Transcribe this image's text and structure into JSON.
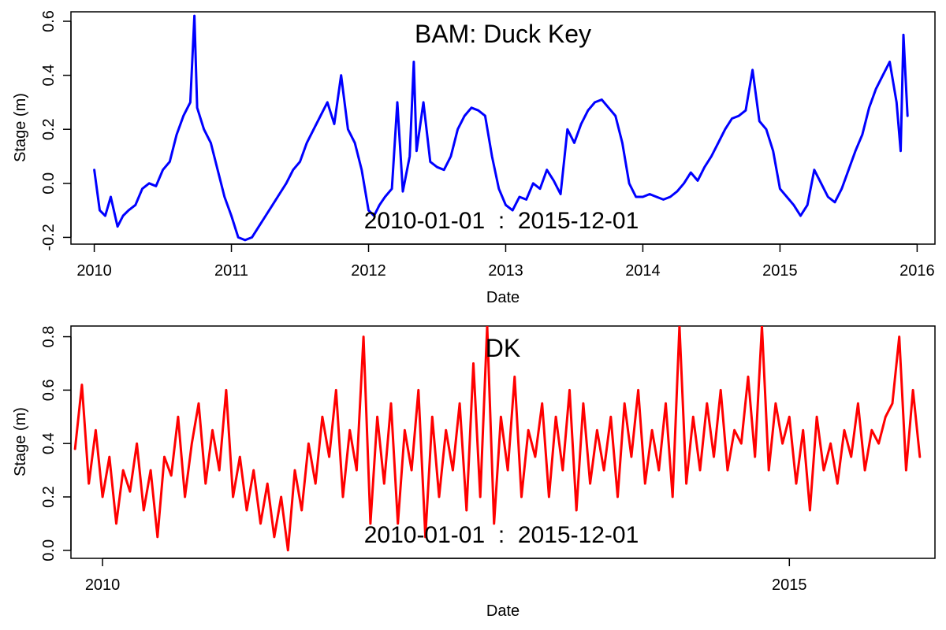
{
  "chart_data": [
    {
      "type": "line",
      "title": "BAM: Duck Key",
      "annotation": "2010-01-01  :  2015-12-01",
      "xlabel": "Date",
      "ylabel": "Stage (m)",
      "xlim": [
        2009.83,
        2016.13
      ],
      "ylim": [
        -0.225,
        0.635
      ],
      "x_ticks": [
        "2010",
        "2011",
        "2012",
        "2013",
        "2014",
        "2015",
        "2016"
      ],
      "x_tick_values": [
        2010,
        2011,
        2012,
        2013,
        2014,
        2015,
        2016
      ],
      "y_ticks": [
        "-0.2",
        "0.0",
        "0.2",
        "0.4",
        "0.6"
      ],
      "y_tick_values": [
        -0.2,
        0.0,
        0.2,
        0.4,
        0.6
      ],
      "series": [
        {
          "color": "#0000ff",
          "x": [
            2010.0,
            2010.04,
            2010.08,
            2010.12,
            2010.17,
            2010.21,
            2010.25,
            2010.3,
            2010.35,
            2010.4,
            2010.45,
            2010.5,
            2010.55,
            2010.6,
            2010.65,
            2010.7,
            2010.73,
            2010.75,
            2010.8,
            2010.85,
            2010.9,
            2010.95,
            2011.0,
            2011.05,
            2011.1,
            2011.15,
            2011.2,
            2011.25,
            2011.3,
            2011.35,
            2011.4,
            2011.45,
            2011.5,
            2011.55,
            2011.6,
            2011.65,
            2011.7,
            2011.75,
            2011.8,
            2011.85,
            2011.9,
            2011.95,
            2012.0,
            2012.04,
            2012.08,
            2012.12,
            2012.17,
            2012.21,
            2012.25,
            2012.3,
            2012.33,
            2012.35,
            2012.4,
            2012.45,
            2012.5,
            2012.55,
            2012.6,
            2012.65,
            2012.7,
            2012.75,
            2012.8,
            2012.85,
            2012.9,
            2012.95,
            2013.0,
            2013.05,
            2013.1,
            2013.15,
            2013.2,
            2013.25,
            2013.3,
            2013.35,
            2013.4,
            2013.45,
            2013.5,
            2013.55,
            2013.6,
            2013.65,
            2013.7,
            2013.75,
            2013.8,
            2013.85,
            2013.9,
            2013.95,
            2014.0,
            2014.05,
            2014.1,
            2014.15,
            2014.2,
            2014.25,
            2014.3,
            2014.35,
            2014.4,
            2014.45,
            2014.5,
            2014.55,
            2014.6,
            2014.65,
            2014.7,
            2014.75,
            2014.8,
            2014.85,
            2014.9,
            2014.95,
            2015.0,
            2015.05,
            2015.1,
            2015.15,
            2015.2,
            2015.25,
            2015.3,
            2015.35,
            2015.4,
            2015.45,
            2015.5,
            2015.55,
            2015.6,
            2015.65,
            2015.7,
            2015.75,
            2015.8,
            2015.85,
            2015.88,
            2015.9,
            2015.93
          ],
          "y": [
            0.05,
            -0.1,
            -0.12,
            -0.05,
            -0.16,
            -0.12,
            -0.1,
            -0.08,
            -0.02,
            0.0,
            -0.01,
            0.05,
            0.08,
            0.18,
            0.25,
            0.3,
            0.62,
            0.28,
            0.2,
            0.15,
            0.05,
            -0.05,
            -0.12,
            -0.2,
            -0.21,
            -0.2,
            -0.16,
            -0.12,
            -0.08,
            -0.04,
            0.0,
            0.05,
            0.08,
            0.15,
            0.2,
            0.25,
            0.3,
            0.22,
            0.4,
            0.2,
            0.15,
            0.05,
            -0.1,
            -0.12,
            -0.08,
            -0.05,
            -0.02,
            0.3,
            -0.03,
            0.1,
            0.45,
            0.12,
            0.3,
            0.08,
            0.06,
            0.05,
            0.1,
            0.2,
            0.25,
            0.28,
            0.27,
            0.25,
            0.1,
            -0.02,
            -0.08,
            -0.1,
            -0.05,
            -0.06,
            0.0,
            -0.02,
            0.05,
            0.01,
            -0.04,
            0.2,
            0.15,
            0.22,
            0.27,
            0.3,
            0.31,
            0.28,
            0.25,
            0.15,
            0.0,
            -0.05,
            -0.05,
            -0.04,
            -0.05,
            -0.06,
            -0.05,
            -0.03,
            0.0,
            0.04,
            0.01,
            0.06,
            0.1,
            0.15,
            0.2,
            0.24,
            0.25,
            0.27,
            0.42,
            0.23,
            0.2,
            0.12,
            -0.02,
            -0.05,
            -0.08,
            -0.12,
            -0.08,
            0.05,
            0.0,
            -0.05,
            -0.07,
            -0.02,
            0.05,
            0.12,
            0.18,
            0.28,
            0.35,
            0.4,
            0.45,
            0.3,
            0.12,
            0.55,
            0.25
          ]
        }
      ]
    },
    {
      "type": "line",
      "title": "DK",
      "annotation": "2010-01-01  :  2015-12-01",
      "xlabel": "Date",
      "ylabel": "Stage (m)",
      "xlim": [
        2009.77,
        2016.06
      ],
      "ylim": [
        -0.03,
        0.84
      ],
      "x_ticks": [
        "2010",
        "2015"
      ],
      "x_tick_values": [
        2010,
        2015
      ],
      "y_ticks": [
        "0.0",
        "0.2",
        "0.4",
        "0.6",
        "0.8"
      ],
      "y_tick_values": [
        0.0,
        0.2,
        0.4,
        0.6,
        0.8
      ],
      "series": [
        {
          "color": "#ff0000",
          "x": [
            2009.8,
            2009.85,
            2009.9,
            2009.95,
            2010.0,
            2010.05,
            2010.1,
            2010.15,
            2010.2,
            2010.25,
            2010.3,
            2010.35,
            2010.4,
            2010.45,
            2010.5,
            2010.55,
            2010.6,
            2010.65,
            2010.7,
            2010.75,
            2010.8,
            2010.85,
            2010.9,
            2010.95,
            2011.0,
            2011.05,
            2011.1,
            2011.15,
            2011.2,
            2011.25,
            2011.3,
            2011.35,
            2011.4,
            2011.45,
            2011.5,
            2011.55,
            2011.6,
            2011.65,
            2011.7,
            2011.75,
            2011.8,
            2011.85,
            2011.9,
            2011.95,
            2012.0,
            2012.05,
            2012.1,
            2012.15,
            2012.2,
            2012.25,
            2012.3,
            2012.35,
            2012.4,
            2012.45,
            2012.5,
            2012.55,
            2012.6,
            2012.65,
            2012.7,
            2012.75,
            2012.8,
            2012.85,
            2012.9,
            2012.95,
            2013.0,
            2013.05,
            2013.1,
            2013.15,
            2013.2,
            2013.25,
            2013.3,
            2013.35,
            2013.4,
            2013.45,
            2013.5,
            2013.55,
            2013.6,
            2013.65,
            2013.7,
            2013.75,
            2013.8,
            2013.85,
            2013.9,
            2013.95,
            2014.0,
            2014.05,
            2014.1,
            2014.15,
            2014.2,
            2014.25,
            2014.3,
            2014.35,
            2014.4,
            2014.45,
            2014.5,
            2014.55,
            2014.6,
            2014.65,
            2014.7,
            2014.75,
            2014.8,
            2014.85,
            2014.9,
            2014.95,
            2015.0,
            2015.05,
            2015.1,
            2015.15,
            2015.2,
            2015.25,
            2015.3,
            2015.35,
            2015.4,
            2015.45,
            2015.5,
            2015.55,
            2015.6,
            2015.65,
            2015.7,
            2015.75,
            2015.8,
            2015.85,
            2015.9,
            2015.95
          ],
          "y": [
            0.38,
            0.62,
            0.25,
            0.45,
            0.2,
            0.35,
            0.1,
            0.3,
            0.22,
            0.4,
            0.15,
            0.3,
            0.05,
            0.35,
            0.28,
            0.5,
            0.2,
            0.4,
            0.55,
            0.25,
            0.45,
            0.3,
            0.6,
            0.2,
            0.35,
            0.15,
            0.3,
            0.1,
            0.25,
            0.05,
            0.2,
            0.0,
            0.3,
            0.15,
            0.4,
            0.25,
            0.5,
            0.35,
            0.6,
            0.2,
            0.45,
            0.3,
            0.8,
            0.1,
            0.5,
            0.25,
            0.55,
            0.1,
            0.45,
            0.3,
            0.6,
            0.05,
            0.5,
            0.2,
            0.45,
            0.3,
            0.55,
            0.15,
            0.7,
            0.2,
            0.84,
            0.1,
            0.5,
            0.3,
            0.65,
            0.2,
            0.45,
            0.35,
            0.55,
            0.2,
            0.5,
            0.3,
            0.6,
            0.15,
            0.55,
            0.25,
            0.45,
            0.3,
            0.5,
            0.2,
            0.55,
            0.35,
            0.6,
            0.25,
            0.45,
            0.3,
            0.55,
            0.2,
            0.84,
            0.25,
            0.5,
            0.3,
            0.55,
            0.35,
            0.6,
            0.3,
            0.45,
            0.4,
            0.65,
            0.35,
            0.84,
            0.3,
            0.55,
            0.4,
            0.5,
            0.25,
            0.45,
            0.15,
            0.5,
            0.3,
            0.4,
            0.25,
            0.45,
            0.35,
            0.55,
            0.3,
            0.45,
            0.4,
            0.5,
            0.55,
            0.8,
            0.3,
            0.6,
            0.35
          ]
        }
      ]
    }
  ]
}
